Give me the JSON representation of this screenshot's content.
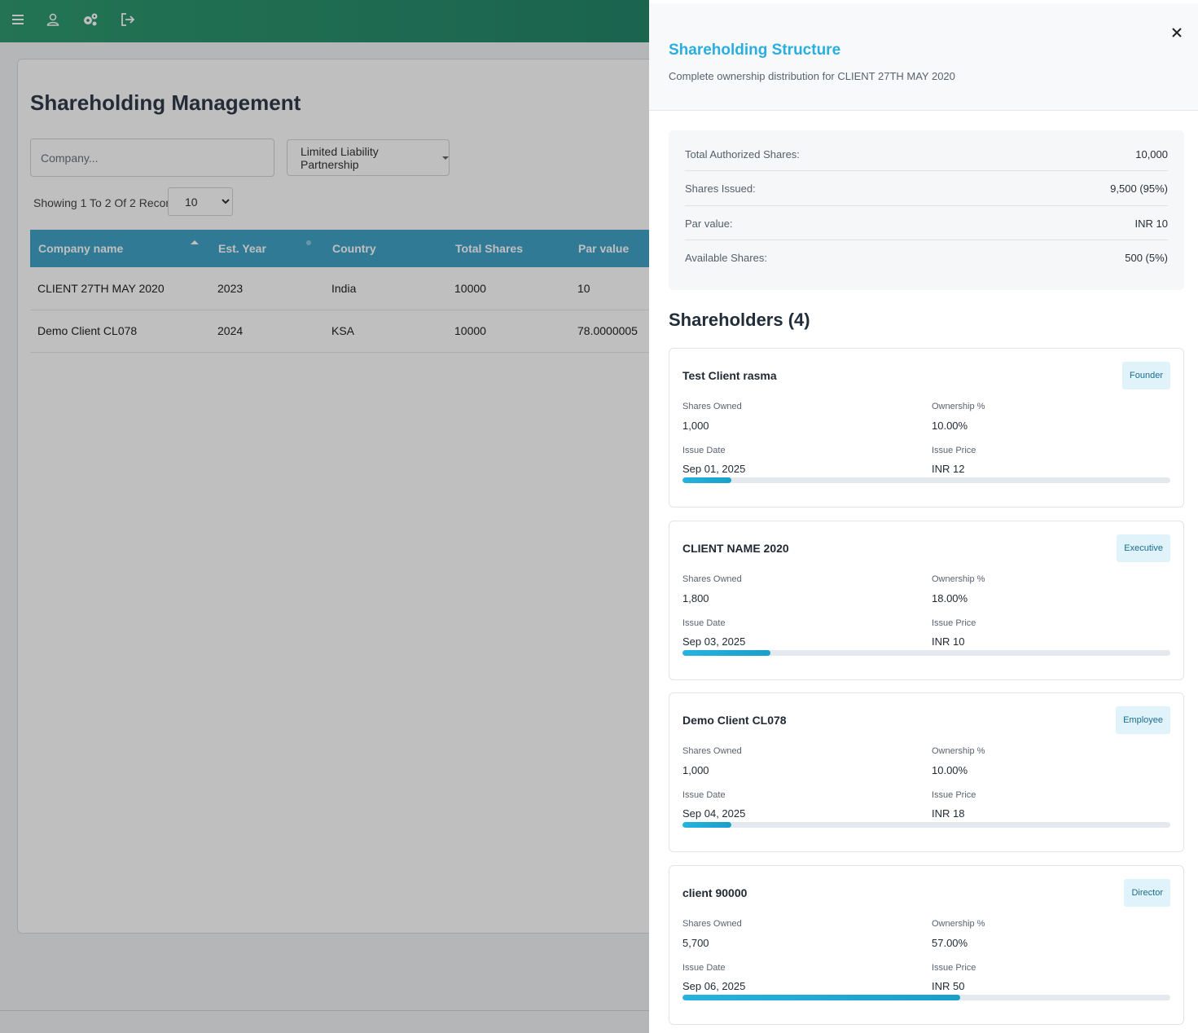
{
  "page": {
    "title": "Shareholding Management",
    "search_placeholder": "Company...",
    "type_filter": "Limited Liability Partnership",
    "records_text": "Showing 1 To 2 Of 2 Records",
    "page_size": "10"
  },
  "table": {
    "headers": [
      "Company name",
      "Est. Year",
      "Country",
      "Total Shares",
      "Par value"
    ],
    "rows": [
      [
        "CLIENT 27TH MAY 2020",
        "2023",
        "India",
        "10000",
        "10"
      ],
      [
        "Demo Client CL078",
        "2024",
        "KSA",
        "10000",
        "78.0000005"
      ]
    ]
  },
  "panel": {
    "title": "Shareholding Structure",
    "subtitle": "Complete ownership distribution for CLIENT 27TH MAY 2020",
    "summary": [
      {
        "label": "Total Authorized Shares:",
        "value": "10,000"
      },
      {
        "label": "Shares Issued:",
        "value": "9,500 (95%)"
      },
      {
        "label": "Par value:",
        "value": "INR 10"
      },
      {
        "label": "Available Shares:",
        "value": "500 (5%)"
      }
    ],
    "shareholders_heading": "Shareholders (4)",
    "labels": {
      "shares_owned": "Shares Owned",
      "ownership": "Ownership %",
      "issue_date": "Issue Date",
      "issue_price": "Issue Price"
    },
    "shareholders": [
      {
        "name": "Test Client rasma",
        "role": "Founder",
        "shares": "1,000",
        "ownership": "10.00%",
        "date": "Sep 01, 2025",
        "price": "INR 12",
        "fraction": 0.1
      },
      {
        "name": "CLIENT NAME 2020",
        "role": "Executive",
        "shares": "1,800",
        "ownership": "18.00%",
        "date": "Sep 03, 2025",
        "price": "INR 10",
        "fraction": 0.18
      },
      {
        "name": "Demo Client CL078",
        "role": "Employee",
        "shares": "1,000",
        "ownership": "10.00%",
        "date": "Sep 04, 2025",
        "price": "INR 18",
        "fraction": 0.1
      },
      {
        "name": "client 90000",
        "role": "Director",
        "shares": "5,700",
        "ownership": "57.00%",
        "date": "Sep 06, 2025",
        "price": "INR 50",
        "fraction": 0.57
      }
    ]
  }
}
